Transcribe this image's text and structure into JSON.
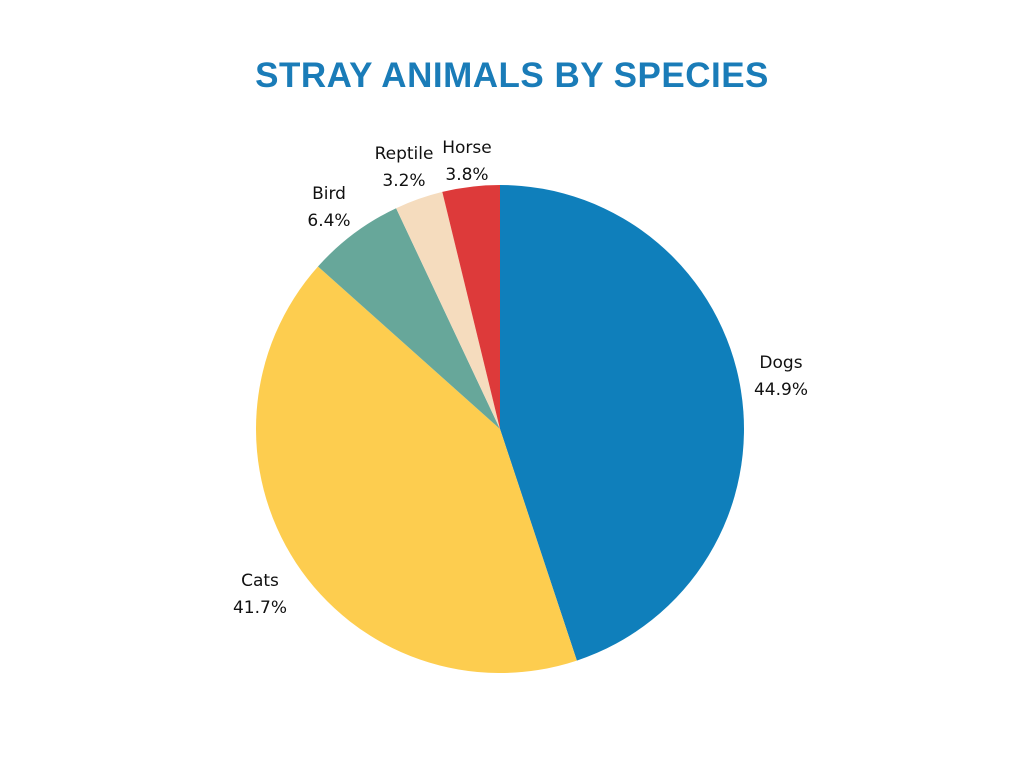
{
  "chart_data": {
    "type": "pie",
    "title": "STRAY ANIMALS BY SPECIES",
    "slices": [
      {
        "label": "Dogs",
        "value": 44.9,
        "display": "44.9%",
        "color": "#0f7fbb"
      },
      {
        "label": "Cats",
        "value": 41.7,
        "display": "41.7%",
        "color": "#fdcd4f"
      },
      {
        "label": "Bird",
        "value": 6.4,
        "display": "6.4%",
        "color": "#67a79a"
      },
      {
        "label": "Reptile",
        "value": 3.2,
        "display": "3.2%",
        "color": "#f5dcbe"
      },
      {
        "label": "Horse",
        "value": 3.8,
        "display": "3.8%",
        "color": "#dd3a3a"
      }
    ],
    "start": "12 o'clock",
    "direction": "clockwise",
    "legend": "none",
    "labels": "outside"
  }
}
